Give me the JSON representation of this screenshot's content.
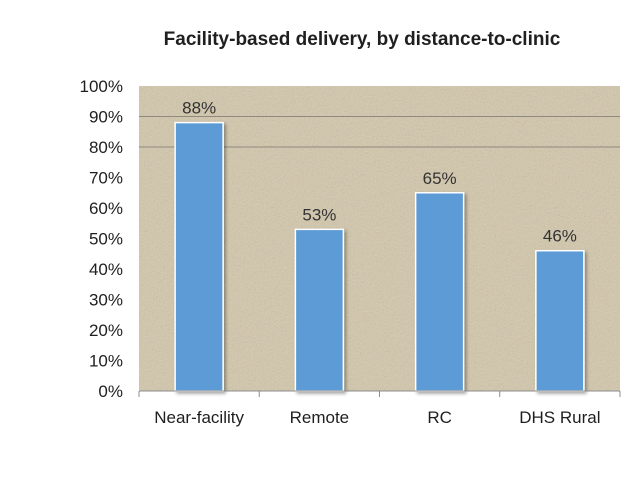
{
  "chart_data": {
    "type": "bar",
    "title": "Facility-based delivery, by distance-to-clinic",
    "categories": [
      "Near-facility",
      "Remote",
      "RC",
      "DHS Rural"
    ],
    "values": [
      88,
      53,
      65,
      46
    ],
    "data_labels": [
      "88%",
      "53%",
      "65%",
      "46%"
    ],
    "ylim": [
      0,
      100
    ],
    "y_ticks": [
      0,
      10,
      20,
      30,
      40,
      50,
      60,
      70,
      80,
      90,
      100
    ],
    "y_tick_labels": [
      "0%",
      "10%",
      "20%",
      "30%",
      "40%",
      "50%",
      "60%",
      "70%",
      "80%",
      "90%",
      "100%"
    ],
    "gridlines": [
      80,
      90
    ],
    "legend": "none",
    "bar_color": "#5b9bd5",
    "plot_background": "#d8cdb4"
  }
}
